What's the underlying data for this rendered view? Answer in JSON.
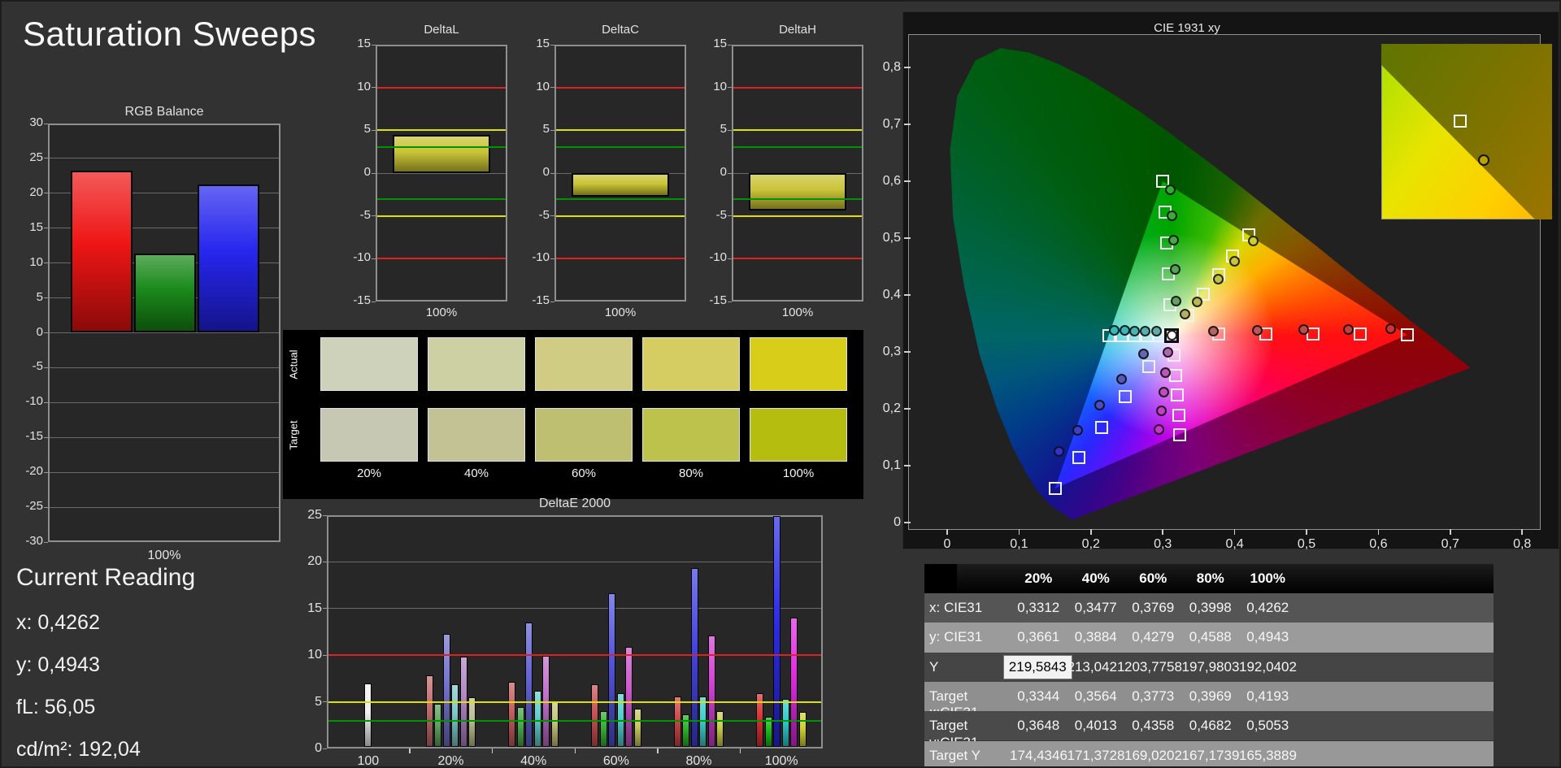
{
  "page": {
    "title": "Saturation Sweeps",
    "background": "#323232"
  },
  "current_reading": {
    "heading": "Current Reading",
    "lines": [
      "x: 0,4262",
      "y: 0,4943",
      "fL: 56,05",
      "cd/m²: 192,04"
    ]
  },
  "table": {
    "col_headers": [
      "",
      "20%",
      "40%",
      "60%",
      "80%",
      "100%"
    ],
    "rows": [
      {
        "label": "x: CIE31",
        "values": [
          "0,3312",
          "0,3477",
          "0,3769",
          "0,3998",
          "0,4262"
        ]
      },
      {
        "label": "y: CIE31",
        "values": [
          "0,3661",
          "0,3884",
          "0,4279",
          "0,4588",
          "0,4943"
        ]
      },
      {
        "label": "Y",
        "values": [
          "219,5843",
          "213,0421",
          "203,7758",
          "197,9803",
          "192,0402"
        ]
      },
      {
        "label": "Target x:CIE31",
        "values": [
          "0,3344",
          "0,3564",
          "0,3773",
          "0,3969",
          "0,4193"
        ]
      },
      {
        "label": "Target y:CIE31",
        "values": [
          "0,3648",
          "0,4013",
          "0,4358",
          "0,4682",
          "0,5053"
        ]
      },
      {
        "label": "Target Y",
        "values": [
          "174,4346",
          "171,3728",
          "169,0202",
          "167,1739",
          "165,3889"
        ]
      }
    ],
    "row_colors": [
      "#555555",
      "#9b9b9b",
      "#454545",
      "#8f8f8f",
      "#4a4a4a",
      "#989898"
    ],
    "selected_cell": {
      "row": 2,
      "col": 0
    }
  },
  "chart_data": [
    {
      "id": "rgb_balance",
      "type": "bar",
      "title": "RGB Balance",
      "xlabel": "100%",
      "ylim": [
        -30,
        30
      ],
      "ytick_step": 5,
      "grid": true,
      "series": [
        {
          "name": "Red",
          "value": 23.2,
          "color": "#ee1111"
        },
        {
          "name": "Green",
          "value": 11.4,
          "color": "#168816"
        },
        {
          "name": "Blue",
          "value": 21.3,
          "color": "#2222ee"
        }
      ]
    },
    {
      "id": "delta_l",
      "type": "bar",
      "title": "DeltaL",
      "xlabel": "100%",
      "ylim": [
        -15,
        15
      ],
      "ytick_step": 5,
      "value": 4.5,
      "bar_color": "#c8c232",
      "ref_lines": [
        {
          "value": 10,
          "color": "#dd2222"
        },
        {
          "value": -10,
          "color": "#dd2222"
        },
        {
          "value": 5,
          "color": "#e0e000"
        },
        {
          "value": -5,
          "color": "#e0e000"
        },
        {
          "value": 3,
          "color": "#009500"
        },
        {
          "value": -3,
          "color": "#009500"
        }
      ]
    },
    {
      "id": "delta_c",
      "type": "bar",
      "title": "DeltaC",
      "xlabel": "100%",
      "ylim": [
        -15,
        15
      ],
      "ytick_step": 5,
      "value": -2.8,
      "bar_color": "#c8c232",
      "ref_lines": [
        {
          "value": 10,
          "color": "#dd2222"
        },
        {
          "value": -10,
          "color": "#dd2222"
        },
        {
          "value": 5,
          "color": "#e0e000"
        },
        {
          "value": -5,
          "color": "#e0e000"
        },
        {
          "value": 3,
          "color": "#009500"
        },
        {
          "value": -3,
          "color": "#009500"
        }
      ]
    },
    {
      "id": "delta_h",
      "type": "bar",
      "title": "DeltaH",
      "xlabel": "100%",
      "ylim": [
        -15,
        15
      ],
      "ytick_step": 5,
      "value": -4.4,
      "bar_color": "#c8c232",
      "ref_lines": [
        {
          "value": 10,
          "color": "#dd2222"
        },
        {
          "value": -10,
          "color": "#dd2222"
        },
        {
          "value": 5,
          "color": "#e0e000"
        },
        {
          "value": -5,
          "color": "#e0e000"
        },
        {
          "value": 3,
          "color": "#009500"
        },
        {
          "value": -3,
          "color": "#009500"
        }
      ]
    },
    {
      "id": "saturation_swatches",
      "type": "table",
      "row_labels": [
        "Actual",
        "Target"
      ],
      "col_labels": [
        "20%",
        "40%",
        "60%",
        "80%",
        "100%"
      ],
      "actual_colors": [
        "#cfd2ba",
        "#cdd0a2",
        "#d1cc83",
        "#d5cd62",
        "#d8ce19"
      ],
      "target_colors": [
        "#c7c8b3",
        "#c2c295",
        "#bfbf72",
        "#bdc24d",
        "#b5bd0e"
      ]
    },
    {
      "id": "deltae_2000",
      "type": "bar",
      "title": "DeltaE 2000",
      "ylim": [
        0,
        25
      ],
      "ytick_step": 5,
      "ref_lines": [
        {
          "value": 10,
          "color": "#dd2222"
        },
        {
          "value": 5,
          "color": "#e0e000"
        },
        {
          "value": 3,
          "color": "#009500"
        }
      ],
      "groups": [
        {
          "label": "100",
          "bars": [
            {
              "color": "#f0f0f0",
              "value": 7.0
            }
          ]
        },
        {
          "label": "20%",
          "bars": [
            {
              "color": "#c06a6a",
              "value": 7.8
            },
            {
              "color": "#5ca45c",
              "value": 4.8
            },
            {
              "color": "#7070cc",
              "value": 12.3
            },
            {
              "color": "#7cc8c8",
              "value": 6.9
            },
            {
              "color": "#b084c4",
              "value": 9.8
            },
            {
              "color": "#bcbc8e",
              "value": 5.5
            }
          ]
        },
        {
          "label": "40%",
          "bars": [
            {
              "color": "#c45c5c",
              "value": 7.1
            },
            {
              "color": "#46a846",
              "value": 4.4
            },
            {
              "color": "#6060d2",
              "value": 13.5
            },
            {
              "color": "#62cccc",
              "value": 6.2
            },
            {
              "color": "#c06cc8",
              "value": 9.9
            },
            {
              "color": "#c2c276",
              "value": 5.0
            }
          ]
        },
        {
          "label": "60%",
          "bars": [
            {
              "color": "#c85050",
              "value": 6.9
            },
            {
              "color": "#34ac34",
              "value": 4.0
            },
            {
              "color": "#5050da",
              "value": 16.6
            },
            {
              "color": "#4ecccc",
              "value": 5.9
            },
            {
              "color": "#cc50cc",
              "value": 10.9
            },
            {
              "color": "#c6c65c",
              "value": 4.3
            }
          ]
        },
        {
          "label": "80%",
          "bars": [
            {
              "color": "#cc4444",
              "value": 5.6
            },
            {
              "color": "#26b026",
              "value": 3.7
            },
            {
              "color": "#4040e2",
              "value": 19.3
            },
            {
              "color": "#3acccc",
              "value": 5.6
            },
            {
              "color": "#d23cd2",
              "value": 12.1
            },
            {
              "color": "#caca46",
              "value": 4.0
            }
          ]
        },
        {
          "label": "100%",
          "bars": [
            {
              "color": "#d83030",
              "value": 5.9
            },
            {
              "color": "#12b812",
              "value": 3.4
            },
            {
              "color": "#2828ec",
              "value": 24.9
            },
            {
              "color": "#2acccc",
              "value": 5.3
            },
            {
              "color": "#e026e0",
              "value": 14.0
            },
            {
              "color": "#d0d02e",
              "value": 3.9
            }
          ]
        }
      ]
    },
    {
      "id": "cie_1931",
      "type": "scatter",
      "title": "CIE 1931 xy",
      "xlim": [
        0,
        0.8
      ],
      "ylim": [
        0,
        0.8
      ],
      "xticks": [
        "0",
        "0,1",
        "0,2",
        "0,3",
        "0,4",
        "0,5",
        "0,6",
        "0,7",
        "0,8"
      ],
      "yticks": [
        "0",
        "0,1",
        "0,2",
        "0,3",
        "0,4",
        "0,5",
        "0,6",
        "0,7",
        "0,8"
      ],
      "white_point": [
        0.3127,
        0.329
      ],
      "gamut_triangle": [
        [
          0.64,
          0.33
        ],
        [
          0.3,
          0.6
        ],
        [
          0.15,
          0.06
        ]
      ],
      "locus": [
        [
          0.174,
          0.005
        ],
        [
          0.144,
          0.03
        ],
        [
          0.124,
          0.058
        ],
        [
          0.11,
          0.087
        ],
        [
          0.091,
          0.133
        ],
        [
          0.069,
          0.201
        ],
        [
          0.045,
          0.295
        ],
        [
          0.024,
          0.413
        ],
        [
          0.008,
          0.538
        ],
        [
          0.004,
          0.655
        ],
        [
          0.014,
          0.75
        ],
        [
          0.039,
          0.812
        ],
        [
          0.074,
          0.834
        ],
        [
          0.114,
          0.826
        ],
        [
          0.155,
          0.806
        ],
        [
          0.193,
          0.782
        ],
        [
          0.23,
          0.754
        ],
        [
          0.266,
          0.724
        ],
        [
          0.302,
          0.692
        ],
        [
          0.337,
          0.659
        ],
        [
          0.373,
          0.625
        ],
        [
          0.409,
          0.59
        ],
        [
          0.444,
          0.555
        ],
        [
          0.479,
          0.52
        ],
        [
          0.513,
          0.487
        ],
        [
          0.545,
          0.454
        ],
        [
          0.575,
          0.424
        ],
        [
          0.603,
          0.397
        ],
        [
          0.627,
          0.373
        ],
        [
          0.648,
          0.351
        ],
        [
          0.666,
          0.334
        ],
        [
          0.692,
          0.308
        ],
        [
          0.708,
          0.292
        ],
        [
          0.719,
          0.281
        ],
        [
          0.728,
          0.272
        ]
      ],
      "sweeps": [
        {
          "name": "red",
          "marker_color": "#cc3333",
          "targets": [
            [
              0.378,
              0.331
            ],
            [
              0.444,
              0.332
            ],
            [
              0.509,
              0.332
            ],
            [
              0.575,
              0.331
            ],
            [
              0.64,
              0.33
            ]
          ],
          "measured": [
            [
              0.371,
              0.337
            ],
            [
              0.432,
              0.338
            ],
            [
              0.496,
              0.339
            ],
            [
              0.558,
              0.34
            ],
            [
              0.617,
              0.341
            ]
          ]
        },
        {
          "name": "green",
          "marker_color": "#33aa33",
          "targets": [
            [
              0.31,
              0.383
            ],
            [
              0.308,
              0.437
            ],
            [
              0.305,
              0.492
            ],
            [
              0.303,
              0.546
            ],
            [
              0.3,
              0.6
            ]
          ],
          "measured": [
            [
              0.319,
              0.389
            ],
            [
              0.317,
              0.445
            ],
            [
              0.315,
              0.497
            ],
            [
              0.313,
              0.539
            ],
            [
              0.311,
              0.585
            ]
          ]
        },
        {
          "name": "blue",
          "marker_color": "#3333cc",
          "targets": [
            [
              0.28,
              0.275
            ],
            [
              0.248,
              0.221
            ],
            [
              0.215,
              0.167
            ],
            [
              0.183,
              0.114
            ],
            [
              0.15,
              0.06
            ]
          ],
          "measured": [
            [
              0.273,
              0.296
            ],
            [
              0.243,
              0.252
            ],
            [
              0.212,
              0.206
            ],
            [
              0.182,
              0.162
            ],
            [
              0.155,
              0.125
            ]
          ]
        },
        {
          "name": "cyan",
          "marker_color": "#33bbbb",
          "targets": [
            [
              0.295,
              0.329
            ],
            [
              0.278,
              0.329
            ],
            [
              0.26,
              0.329
            ],
            [
              0.243,
              0.329
            ],
            [
              0.225,
              0.329
            ]
          ],
          "measured": [
            [
              0.291,
              0.337
            ],
            [
              0.276,
              0.337
            ],
            [
              0.261,
              0.337
            ],
            [
              0.247,
              0.338
            ],
            [
              0.232,
              0.338
            ]
          ]
        },
        {
          "name": "magenta",
          "marker_color": "#cc33cc",
          "targets": [
            [
              0.316,
              0.294
            ],
            [
              0.318,
              0.259
            ],
            [
              0.32,
              0.224
            ],
            [
              0.322,
              0.189
            ],
            [
              0.324,
              0.154
            ]
          ],
          "measured": [
            [
              0.307,
              0.299
            ],
            [
              0.304,
              0.263
            ],
            [
              0.301,
              0.23
            ],
            [
              0.298,
              0.197
            ],
            [
              0.295,
              0.163
            ]
          ]
        },
        {
          "name": "yellow",
          "marker_color": "#cccc33",
          "targets": [
            [
              0.3344,
              0.3648
            ],
            [
              0.3564,
              0.4013
            ],
            [
              0.3773,
              0.4358
            ],
            [
              0.3969,
              0.4682
            ],
            [
              0.4193,
              0.5053
            ]
          ],
          "measured": [
            [
              0.3312,
              0.3661
            ],
            [
              0.3477,
              0.3884
            ],
            [
              0.3769,
              0.4279
            ],
            [
              0.3998,
              0.4588
            ],
            [
              0.4262,
              0.4943
            ]
          ]
        }
      ],
      "inset": {
        "square": [
          0.46,
          0.44
        ],
        "circle": [
          0.6,
          0.66
        ],
        "circle_color": "#b8a400"
      }
    }
  ]
}
